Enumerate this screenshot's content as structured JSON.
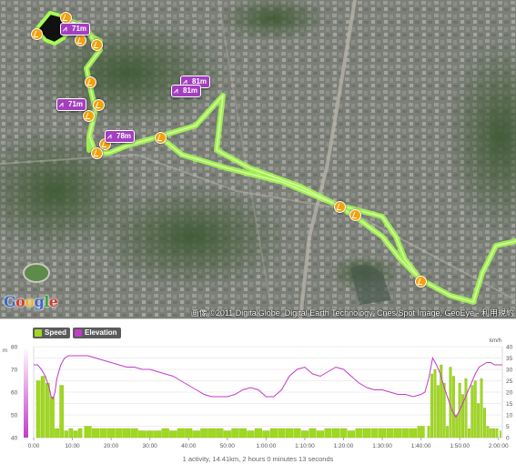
{
  "map": {
    "copyright": "画像 ©2011 DigitalGlobe, Digital Earth Technology, Cnes/Spot Image, GeoEye - 利用規約",
    "logo_letters": [
      "G",
      "o",
      "o",
      "g",
      "l",
      "e"
    ],
    "logo_colors": [
      "#3b68c4",
      "#d63a2b",
      "#f0b31b",
      "#3b68c4",
      "#3da047",
      "#d63a2b"
    ],
    "route_color": "#a6ff50",
    "elevation_labels": [
      {
        "text": "71m"
      },
      {
        "text": "81m"
      },
      {
        "text": "81m"
      },
      {
        "text": "71m"
      },
      {
        "text": "78m"
      }
    ]
  },
  "chart": {
    "legend": [
      {
        "label": "Speed",
        "color": "#a0d81e"
      },
      {
        "label": "Elevation",
        "color": "#c13bc9"
      }
    ],
    "left_axis_unit": "m",
    "right_axis_unit": "km/h",
    "left_ticks": [
      "80",
      "70",
      "60",
      "50",
      "40"
    ],
    "right_ticks": [
      "40",
      "35",
      "30",
      "25",
      "20",
      "15",
      "10",
      "5",
      "0"
    ],
    "x_ticks": [
      "0:00",
      "10:00",
      "20:00",
      "30:00",
      "40:00",
      "50:00",
      "1:00:00",
      "1:10:00",
      "1:20:00",
      "1:30:00",
      "1:40:00",
      "1:50:00",
      "2:00:00"
    ],
    "summary": "1 activity, 14.41km, 2 hours 0 minutes 13 seconds"
  },
  "chart_data": {
    "type": "bar",
    "x_label": "",
    "x_range_minutes": [
      0,
      121
    ],
    "series": [
      {
        "name": "Speed",
        "axis": "right",
        "ylim": [
          0,
          40
        ],
        "x_minutes": [
          1.2,
          2.4,
          3.6,
          4.8,
          6,
          7.2,
          8.4,
          9.6,
          10.8,
          12,
          14,
          16,
          18,
          20,
          22,
          24,
          26,
          28,
          30,
          32,
          34,
          36,
          38,
          40,
          42,
          44,
          46,
          48,
          50,
          52,
          54,
          56,
          58,
          60,
          62,
          64,
          66,
          68,
          70,
          72,
          74,
          76,
          78,
          80,
          82,
          84,
          86,
          88,
          90,
          92,
          94,
          96,
          98,
          100,
          102,
          102.8,
          103.6,
          104.4,
          105.2,
          106,
          106.8,
          107.6,
          108.4,
          109.2,
          110,
          110.8,
          111.6,
          112.4,
          113.2,
          114,
          114.8,
          115.6,
          116.4,
          117.2,
          118,
          118.8,
          119.6,
          120.5
        ],
        "values": [
          25,
          27,
          24,
          18,
          4,
          23,
          3,
          4,
          3,
          4,
          5,
          4,
          4,
          4,
          4,
          4,
          4,
          3,
          3,
          3,
          4,
          3,
          4,
          4,
          3,
          4,
          4,
          4,
          3,
          4,
          4,
          3,
          4,
          3,
          4,
          4,
          4,
          4,
          3,
          4,
          3,
          4,
          4,
          4,
          3,
          4,
          4,
          4,
          4,
          4,
          4,
          4,
          4,
          5,
          5,
          28,
          30,
          23,
          32,
          24,
          5,
          31,
          27,
          10,
          24,
          19,
          26,
          4,
          23,
          25,
          15,
          26,
          13,
          5,
          4,
          4,
          4,
          3
        ]
      },
      {
        "name": "Elevation",
        "axis": "left",
        "ylim": [
          40,
          80
        ],
        "x_minutes": [
          0,
          1,
          2,
          3,
          4,
          4.5,
          5,
          5.5,
          6,
          7,
          8,
          9,
          10,
          12,
          14,
          16,
          18,
          20,
          22,
          24,
          26,
          28,
          30,
          32,
          34,
          36,
          38,
          40,
          42,
          44,
          46,
          48,
          50,
          52,
          54,
          56,
          58,
          60,
          62,
          64,
          66,
          68,
          70,
          72,
          74,
          76,
          78,
          80,
          82,
          84,
          86,
          88,
          90,
          92,
          94,
          96,
          98,
          100,
          101,
          102,
          103,
          104,
          105,
          106,
          107,
          108,
          109,
          110,
          111,
          112,
          113,
          114,
          115,
          116,
          117,
          118,
          119,
          120,
          121
        ],
        "values": [
          72,
          72,
          70,
          67,
          62,
          58,
          57,
          60,
          66,
          72,
          75,
          76,
          76,
          76,
          76,
          75,
          74,
          73,
          72,
          71,
          71,
          70,
          70,
          69,
          68,
          67,
          65,
          63,
          61,
          59,
          58,
          58,
          58,
          59,
          61,
          62,
          61,
          58,
          58,
          61,
          67,
          70,
          71,
          68,
          67,
          69,
          71,
          70,
          67,
          64,
          62,
          61,
          61,
          60,
          59,
          59,
          58,
          59,
          60,
          66,
          75,
          72,
          68,
          62,
          57,
          52,
          49,
          52,
          56,
          60,
          64,
          68,
          71,
          72,
          73,
          73,
          72,
          72,
          72
        ]
      }
    ]
  }
}
